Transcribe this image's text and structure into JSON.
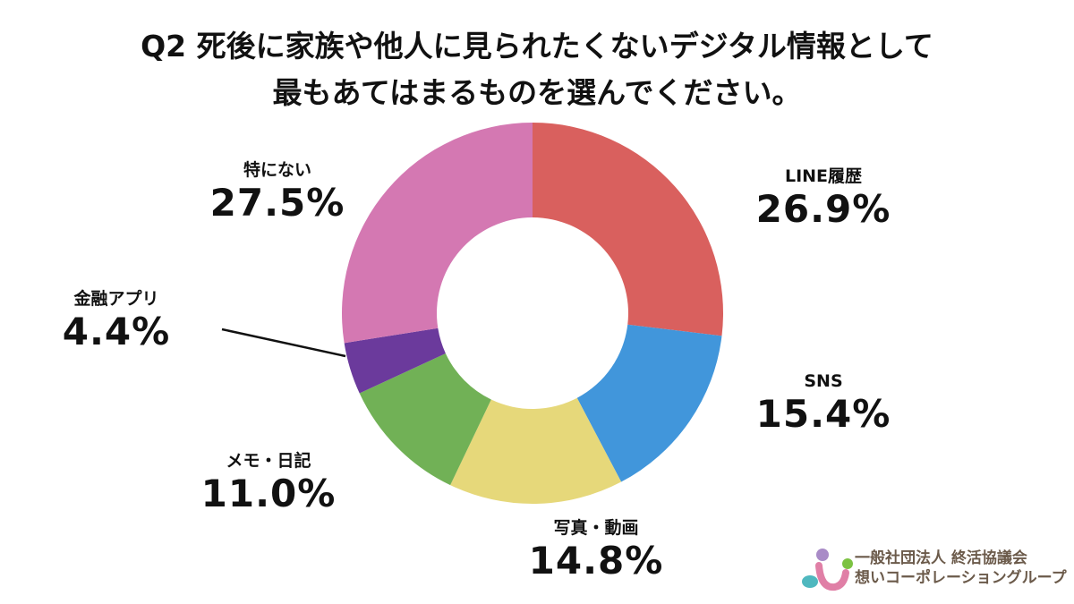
{
  "title": {
    "line1": "Q2 死後に家族や他人に見られたくないデジタル情報として",
    "line2": "最もあてはまるものを選んでください。"
  },
  "labels": {
    "line": {
      "name": "LINE履歴",
      "pct": "26.9%"
    },
    "sns": {
      "name": "SNS",
      "pct": "15.4%"
    },
    "photo": {
      "name": "写真・動画",
      "pct": "14.8%"
    },
    "memo": {
      "name": "メモ・日記",
      "pct": "11.0%"
    },
    "finance": {
      "name": "金融アプリ",
      "pct": "4.4%"
    },
    "none": {
      "name": "特にない",
      "pct": "27.5%"
    }
  },
  "logo": {
    "line1": "一般社団法人 終活協議会",
    "line2": "想いコーポレーショングループ",
    "colors": {
      "purple": "#a98bc7",
      "green": "#7cc242",
      "pink": "#e07fa6",
      "teal": "#4fb8bf"
    }
  },
  "chart_data": {
    "type": "pie",
    "variant": "donut",
    "title": "Q2 死後に家族や他人に見られたくないデジタル情報として最もあてはまるものを選んでください。",
    "start_angle_deg": 0,
    "direction": "clockwise",
    "categories": [
      "LINE履歴",
      "SNS",
      "写真・動画",
      "メモ・日記",
      "金融アプリ",
      "特にない"
    ],
    "values": [
      26.9,
      15.4,
      14.8,
      11.0,
      4.4,
      27.5
    ],
    "unit": "%",
    "colors": [
      "#d9605e",
      "#4196db",
      "#e6d87a",
      "#71b156",
      "#6b3a9c",
      "#d478b2"
    ],
    "center": [
      595,
      350
    ],
    "outer_radius": 213,
    "inner_radius": 107,
    "legend": "none (direct labels)"
  }
}
